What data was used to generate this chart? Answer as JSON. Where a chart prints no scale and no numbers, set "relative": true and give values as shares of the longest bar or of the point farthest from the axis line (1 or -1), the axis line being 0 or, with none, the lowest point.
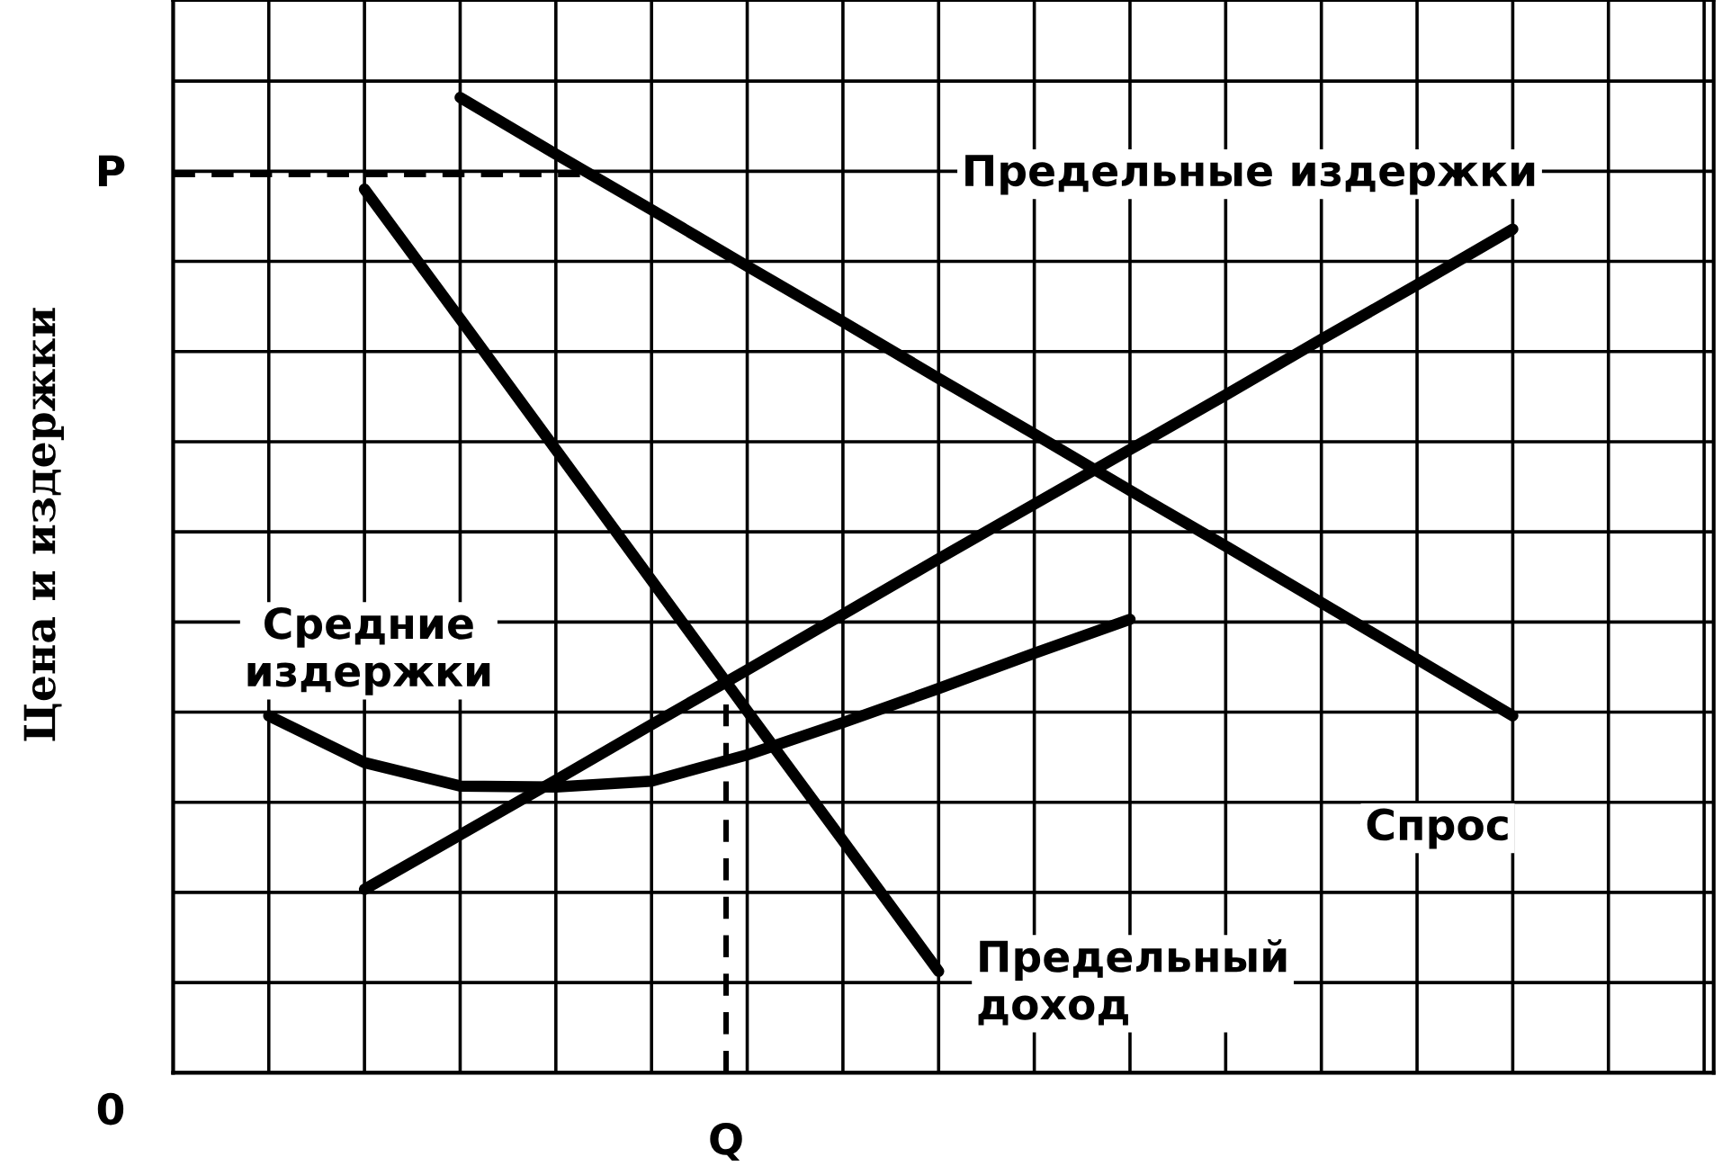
{
  "chart_data": {
    "type": "line",
    "ylabel": "Цена и издержки",
    "relative": true,
    "grid": true,
    "line_style": "solid",
    "marker": "none",
    "categories": [
      null,
      null,
      null,
      null,
      null,
      null,
      null,
      null,
      null,
      null,
      null,
      null,
      null,
      null,
      null
    ],
    "annotations": [
      "0",
      "Q"
    ],
    "ref_lines": [
      {
        "axis": "y",
        "value": 0.921,
        "label": "P",
        "color": "#000000",
        "line_style": "dashed"
      }
    ],
    "series": [
      {
        "name": "Спрос",
        "color": "#000000",
        "values": [
          null,
          null,
          1.0,
          0.942,
          0.885,
          0.827,
          0.77,
          0.712,
          0.655,
          0.597,
          0.54,
          0.482,
          0.424,
          0.366,
          null
        ]
      },
      {
        "name": "Предельные издержки",
        "color": "#000000",
        "values": [
          null,
          0.188,
          0.244,
          0.3,
          0.357,
          0.413,
          0.47,
          0.527,
          0.583,
          0.639,
          0.695,
          0.752,
          0.808,
          0.865,
          null
        ]
      },
      {
        "name": "Предельный доход",
        "color": "#000000",
        "values": [
          null,
          0.906,
          0.773,
          0.639,
          0.505,
          0.371,
          0.238,
          0.104,
          null,
          null,
          null,
          null,
          null,
          null,
          null
        ]
      },
      {
        "name": "Средние издержки",
        "color": "#000000",
        "values": [
          0.366,
          0.318,
          0.294,
          0.293,
          0.299,
          0.326,
          0.359,
          0.394,
          0.43,
          0.465,
          null,
          null,
          null,
          null,
          null
        ]
      }
    ]
  }
}
